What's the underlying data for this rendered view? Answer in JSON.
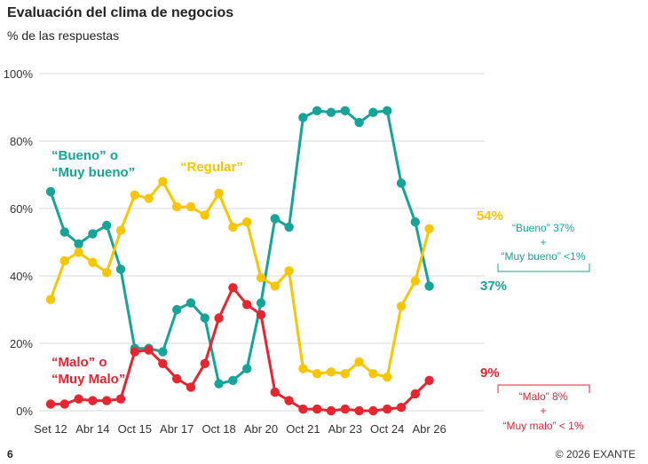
{
  "header": {
    "title": "Evaluación del clima de negocios",
    "subtitle": "% de las respuestas"
  },
  "footer": {
    "page_number": "6",
    "copyright": "© 2026 EXANTE"
  },
  "colors": {
    "bueno": "#17A398",
    "regular": "#F7C600",
    "malo": "#E5252F",
    "grid": "#D9D9D9"
  },
  "chart_data": {
    "type": "line",
    "ylim": [
      0,
      100
    ],
    "y_ticks": [
      "0%",
      "20%",
      "40%",
      "60%",
      "80%",
      "100%"
    ],
    "x_tick_labels": [
      "Set 12",
      "Abr 14",
      "Oct 15",
      "Abr 17",
      "Oct 18",
      "Abr 20",
      "Oct 21",
      "Abr 23",
      "Oct 24",
      "Abr 26"
    ],
    "grid": "horizontal",
    "series": [
      {
        "key": "bueno",
        "line1": "“Bueno” o",
        "line2": "“Muy bueno”",
        "values": [
          65,
          53,
          49.5,
          52.5,
          55,
          42,
          18.5,
          18.5,
          17.5,
          30,
          32,
          27.5,
          8,
          9,
          12.5,
          32,
          57,
          54.5,
          87,
          89,
          88.5,
          89,
          85.5,
          88.5,
          89,
          67.5,
          56,
          37
        ],
        "end_label": "37%",
        "note": {
          "line1": "“Bueno” 37%",
          "line2": "+",
          "line3": "“Muy bueno” <1%"
        }
      },
      {
        "key": "regular",
        "line1": "“Regular”",
        "values": [
          33,
          44.5,
          47,
          44,
          41,
          53.5,
          64,
          63,
          68,
          60.5,
          60.5,
          58,
          64.5,
          54.5,
          56,
          39.5,
          37,
          41.5,
          12.5,
          11,
          11.5,
          11,
          14.5,
          11,
          10,
          31,
          38.5,
          54
        ],
        "end_label": "54%"
      },
      {
        "key": "malo",
        "line1": "“Malo” o",
        "line2": "“Muy Malo”",
        "values": [
          2,
          2,
          3.5,
          3,
          3,
          3.5,
          17.5,
          18,
          14,
          9.5,
          7,
          14,
          27.5,
          36.5,
          31.5,
          28.5,
          5.5,
          3,
          0.5,
          0.5,
          0,
          0.5,
          0,
          0,
          0.5,
          1,
          5,
          9
        ],
        "end_label": "9%",
        "note": {
          "line1": "“Malo” 8%",
          "line2": "+",
          "line3": "“Muy malo” < 1%"
        }
      }
    ]
  }
}
